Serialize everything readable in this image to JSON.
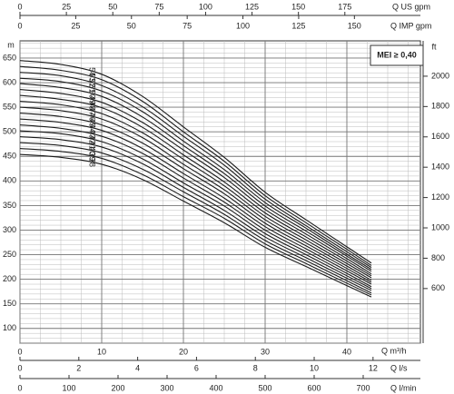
{
  "chart_data": {
    "type": "line",
    "ylabel": "m",
    "y2label": "ft",
    "xlabel": "Q m³/h",
    "annotation": "MEI ≥ 0,40",
    "grid": true,
    "xlim": [
      0,
      49
    ],
    "xticks": [
      0,
      10,
      20,
      30,
      40
    ],
    "ylim": [
      70,
      685
    ],
    "yticks": [
      100,
      150,
      200,
      250,
      300,
      350,
      400,
      450,
      500,
      550,
      600,
      650
    ],
    "y2lim": [
      240,
      2233
    ],
    "y2ticks": [
      600,
      800,
      1000,
      1200,
      1400,
      1600,
      1800,
      2000
    ],
    "extra_x_axes": [
      {
        "label": "Q US gpm",
        "xlim": [
          0,
          215.7
        ],
        "xticks": [
          0,
          25,
          50,
          75,
          100,
          125,
          150,
          175
        ]
      },
      {
        "label": "Q IMP gpm",
        "xlim": [
          0,
          179.6
        ],
        "xticks": [
          0,
          25,
          50,
          75,
          100,
          125,
          150
        ]
      },
      {
        "label": "Q l/s",
        "xlim": [
          0,
          13.61
        ],
        "xticks": [
          0,
          2,
          4,
          6,
          8,
          10,
          12
        ]
      },
      {
        "label": "Q l/min",
        "xlim": [
          0,
          816.7
        ],
        "xticks": [
          0,
          100,
          200,
          300,
          400,
          500,
          600,
          700
        ]
      }
    ],
    "x": [
      0,
      5,
      10,
      15,
      20,
      25,
      30,
      35,
      40,
      43
    ],
    "series": [
      {
        "name": "38",
        "color": "#1a1a1a",
        "values": [
          454,
          448,
          434,
          403,
          359,
          315,
          265,
          226,
          187,
          164
        ]
      },
      {
        "name": "39",
        "color": "#1a1a1a",
        "values": [
          466,
          460,
          446,
          413,
          368,
          324,
          272,
          232,
          192,
          168
        ]
      },
      {
        "name": "40",
        "color": "#1a1a1a",
        "values": [
          478,
          472,
          457,
          424,
          378,
          332,
          279,
          238,
          197,
          172
        ]
      },
      {
        "name": "41",
        "color": "#1a1a1a",
        "values": [
          490,
          484,
          469,
          435,
          387,
          340,
          286,
          244,
          202,
          177
        ]
      },
      {
        "name": "42",
        "color": "#1a1a1a",
        "values": [
          502,
          496,
          480,
          445,
          396,
          349,
          293,
          250,
          207,
          181
        ]
      },
      {
        "name": "43",
        "color": "#1a1a1a",
        "values": [
          514,
          507,
          491,
          456,
          406,
          357,
          300,
          256,
          212,
          185
        ]
      },
      {
        "name": "44",
        "color": "#1a1a1a",
        "values": [
          526,
          519,
          503,
          466,
          415,
          365,
          307,
          262,
          217,
          190
        ]
      },
      {
        "name": "45",
        "color": "#1a1a1a",
        "values": [
          538,
          531,
          514,
          477,
          425,
          374,
          314,
          268,
          222,
          194
        ]
      },
      {
        "name": "46",
        "color": "#1a1a1a",
        "values": [
          550,
          543,
          526,
          488,
          434,
          382,
          321,
          274,
          227,
          198
        ]
      },
      {
        "name": "47",
        "color": "#1a1a1a",
        "values": [
          562,
          555,
          537,
          498,
          444,
          390,
          328,
          280,
          232,
          203
        ]
      },
      {
        "name": "48",
        "color": "#1a1a1a",
        "values": [
          574,
          566,
          549,
          509,
          453,
          398,
          335,
          286,
          237,
          207
        ]
      },
      {
        "name": "49",
        "color": "#1a1a1a",
        "values": [
          586,
          578,
          560,
          519,
          463,
          407,
          342,
          292,
          242,
          211
        ]
      },
      {
        "name": "50",
        "color": "#1a1a1a",
        "values": [
          598,
          590,
          572,
          530,
          472,
          415,
          349,
          298,
          247,
          216
        ]
      },
      {
        "name": "51",
        "color": "#1a1a1a",
        "values": [
          609,
          602,
          583,
          541,
          481,
          423,
          356,
          304,
          251,
          220
        ]
      },
      {
        "name": "52",
        "color": "#1a1a1a",
        "values": [
          621,
          614,
          594,
          551,
          491,
          432,
          363,
          309,
          256,
          224
        ]
      },
      {
        "name": "53",
        "color": "#1a1a1a",
        "values": [
          633,
          625,
          606,
          562,
          500,
          440,
          370,
          315,
          261,
          228
        ]
      },
      {
        "name": "54",
        "color": "#1a1a1a",
        "values": [
          645,
          637,
          617,
          572,
          510,
          448,
          377,
          321,
          266,
          233
        ]
      }
    ]
  }
}
